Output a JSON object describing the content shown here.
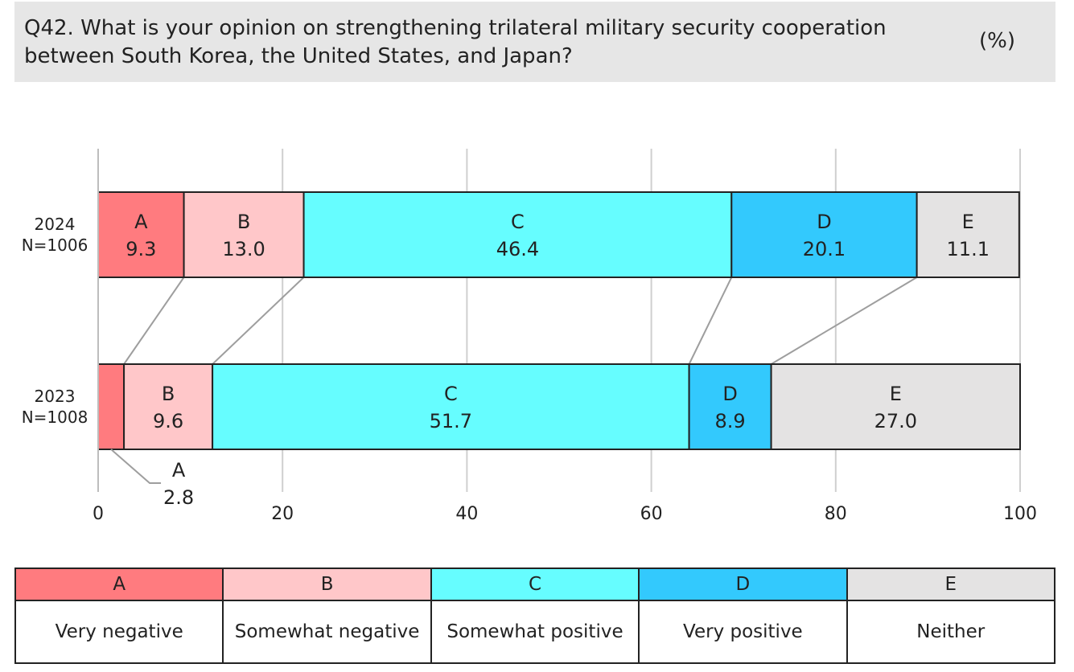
{
  "header": {
    "line1": "Q42. What is your opinion on strengthening trilateral military security cooperation",
    "line2": "between South Korea, the United States, and Japan?",
    "unit": "(%)"
  },
  "chart_data": {
    "type": "bar",
    "orientation": "horizontal-stacked-100",
    "categories": [
      {
        "year": "2024",
        "n": "N=1006"
      },
      {
        "year": "2023",
        "n": "N=1008"
      }
    ],
    "series": [
      {
        "name": "A",
        "color": "#ff7b7f",
        "values": [
          9.3,
          2.8
        ]
      },
      {
        "name": "B",
        "color": "#ffc7c9",
        "values": [
          13.0,
          9.6
        ]
      },
      {
        "name": "C",
        "color": "#66fdff",
        "values": [
          46.4,
          51.7
        ]
      },
      {
        "name": "D",
        "color": "#33c9fd",
        "values": [
          20.1,
          8.9
        ]
      },
      {
        "name": "E",
        "color": "#e4e3e3",
        "values": [
          11.1,
          27.0
        ]
      }
    ],
    "value_labels": [
      [
        "9.3",
        "13.0",
        "46.4",
        "20.1",
        "11.1"
      ],
      [
        "2.8",
        "9.6",
        "51.7",
        "8.9",
        "27.0"
      ]
    ],
    "xlim": [
      0,
      100
    ],
    "xticks": [
      "0",
      "20",
      "40",
      "60",
      "80",
      "100"
    ],
    "grid": true
  },
  "legend": {
    "items": [
      {
        "key": "A",
        "label": "Very negative",
        "color": "#ff7b7f"
      },
      {
        "key": "B",
        "label": "Somewhat negative",
        "color": "#ffc7c9"
      },
      {
        "key": "C",
        "label": "Somewhat positive",
        "color": "#66fdff"
      },
      {
        "key": "D",
        "label": "Very positive",
        "color": "#33c9fd"
      },
      {
        "key": "E",
        "label": "Neither",
        "color": "#e4e3e3"
      }
    ]
  }
}
